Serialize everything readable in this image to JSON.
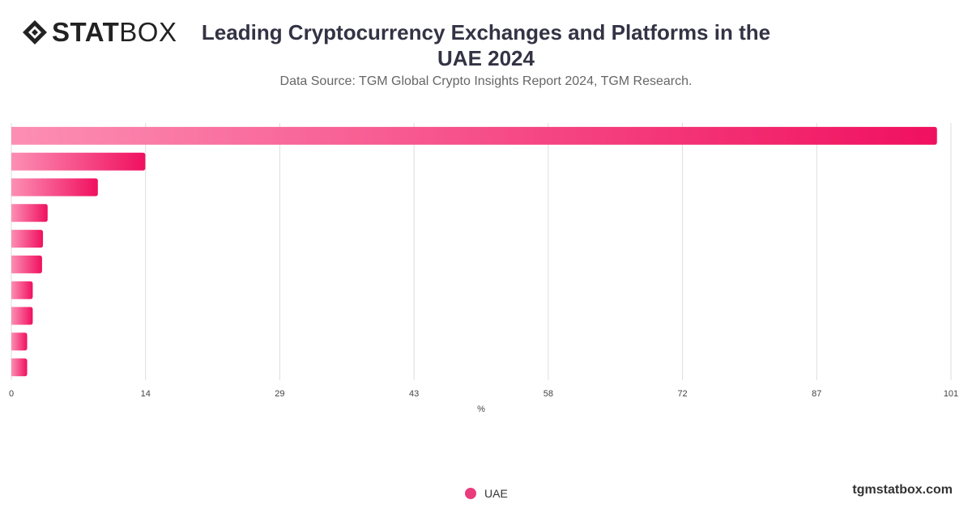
{
  "header": {
    "logo_bold": "STAT",
    "logo_light": "BOX",
    "title": "Leading Cryptocurrency Exchanges and Platforms in the UAE 2024",
    "subtitle": "Data Source: TGM Global Crypto Insights Report 2024, TGM Research."
  },
  "footer": {
    "url": "tgmstatbox.com"
  },
  "colors": {
    "bar_start": "#fc8fb4",
    "bar_end": "#f0105f",
    "grid": "#dddddd",
    "legend_dot": "#ea3b7d"
  },
  "chart_data": {
    "type": "bar",
    "orientation": "horizontal",
    "title": "Leading Cryptocurrency Exchanges and Platforms in the UAE 2024",
    "xlabel": "%",
    "ylabel": "",
    "xlim": [
      0,
      101
    ],
    "x_ticks": [
      "0",
      "14",
      "29",
      "43",
      "58",
      "72",
      "87",
      "101"
    ],
    "categories": [
      "",
      "",
      "",
      "",
      "",
      "",
      "",
      "",
      "",
      ""
    ],
    "series": [
      {
        "name": "UAE",
        "values": [
          99.5,
          14.4,
          9.3,
          3.9,
          3.4,
          3.3,
          2.3,
          2.3,
          1.7,
          1.7
        ]
      }
    ],
    "grid": true,
    "legend_position": "bottom-center"
  }
}
